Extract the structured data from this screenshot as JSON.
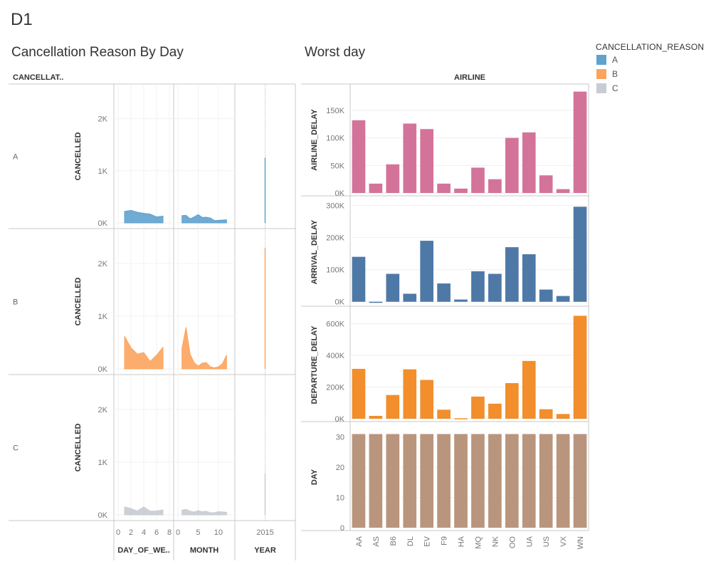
{
  "dashboard": {
    "title": "D1"
  },
  "sheets": {
    "left_title": "Cancellation Reason By Day",
    "right_title": "Worst day"
  },
  "legend": {
    "title": "CANCELLATION_REASON",
    "items": [
      {
        "label": "A",
        "color": "#5fa2ce"
      },
      {
        "label": "B",
        "color": "#fca45d"
      },
      {
        "label": "C",
        "color": "#c8ccd3"
      }
    ]
  },
  "chart_data": [
    {
      "type": "area",
      "row_header": "CANCELLAT..",
      "ylabel": "CANCELLED",
      "ylim": [
        0,
        2500
      ],
      "yticks": [
        0,
        1000,
        2000
      ],
      "ytick_labels": [
        "0K",
        "1K",
        "2K"
      ],
      "rows": [
        {
          "name": "A",
          "color": "#5fa2ce",
          "day_of_week": [
            [
              1,
              220
            ],
            [
              2,
              240
            ],
            [
              3,
              205
            ],
            [
              4,
              185
            ],
            [
              5,
              170
            ],
            [
              6,
              115
            ],
            [
              7,
              130
            ]
          ],
          "month": [
            [
              1,
              140
            ],
            [
              2,
              145
            ],
            [
              3,
              80
            ],
            [
              4,
              115
            ],
            [
              5,
              160
            ],
            [
              6,
              105
            ],
            [
              7,
              110
            ],
            [
              8,
              95
            ],
            [
              9,
              45
            ],
            [
              10,
              50
            ],
            [
              11,
              55
            ],
            [
              12,
              60
            ]
          ],
          "year": [
            [
              2015,
              1250
            ]
          ]
        },
        {
          "name": "B",
          "color": "#fca45d",
          "day_of_week": [
            [
              1,
              620
            ],
            [
              2,
              400
            ],
            [
              3,
              280
            ],
            [
              4,
              310
            ],
            [
              5,
              140
            ],
            [
              6,
              260
            ],
            [
              7,
              410
            ]
          ],
          "month": [
            [
              1,
              390
            ],
            [
              2,
              790
            ],
            [
              3,
              280
            ],
            [
              4,
              120
            ],
            [
              5,
              50
            ],
            [
              6,
              110
            ],
            [
              7,
              120
            ],
            [
              8,
              40
            ],
            [
              9,
              20
            ],
            [
              10,
              40
            ],
            [
              11,
              100
            ],
            [
              12,
              260
            ]
          ],
          "year": [
            [
              2015,
              2300
            ]
          ]
        },
        {
          "name": "C",
          "color": "#c8ccd3",
          "day_of_week": [
            [
              1,
              150
            ],
            [
              2,
              120
            ],
            [
              3,
              75
            ],
            [
              4,
              150
            ],
            [
              5,
              70
            ],
            [
              6,
              75
            ],
            [
              7,
              95
            ]
          ],
          "month": [
            [
              1,
              90
            ],
            [
              2,
              105
            ],
            [
              3,
              70
            ],
            [
              4,
              55
            ],
            [
              5,
              80
            ],
            [
              6,
              60
            ],
            [
              7,
              70
            ],
            [
              8,
              40
            ],
            [
              9,
              40
            ],
            [
              10,
              60
            ],
            [
              11,
              55
            ],
            [
              12,
              50
            ]
          ],
          "year": [
            [
              2015,
              780
            ]
          ]
        }
      ],
      "columns": [
        {
          "key": "day_of_week",
          "label": "DAY_OF_WE..",
          "xlim": [
            0,
            8
          ],
          "ticks": [
            0,
            2,
            4,
            6,
            8
          ]
        },
        {
          "key": "month",
          "label": "MONTH",
          "xlim": [
            0,
            13
          ],
          "ticks": [
            0,
            5,
            10
          ]
        },
        {
          "key": "year",
          "label": "YEAR",
          "xlim": [
            2014,
            2016
          ],
          "ticks": [
            2015
          ]
        }
      ]
    },
    {
      "type": "bar",
      "xlabel": "AIRLINE",
      "categories": [
        "AA",
        "AS",
        "B6",
        "DL",
        "EV",
        "F9",
        "HA",
        "MQ",
        "NK",
        "OO",
        "UA",
        "US",
        "VX",
        "WN"
      ],
      "series": [
        {
          "name": "AIRLINE_DELAY",
          "color": "#d4739a",
          "ylim": [
            0,
            190000
          ],
          "yticks": [
            0,
            50000,
            100000,
            150000
          ],
          "ytick_labels": [
            "0K",
            "50K",
            "100K",
            "150K"
          ],
          "values": [
            132000,
            17000,
            52000,
            126000,
            116000,
            17000,
            8000,
            46000,
            25000,
            100000,
            110000,
            32000,
            7000,
            184000
          ]
        },
        {
          "name": "ARRIVAL_DELAY",
          "color": "#4e79a7",
          "ylim": [
            -5000,
            310000
          ],
          "yticks": [
            0,
            100000,
            200000,
            300000
          ],
          "ytick_labels": [
            "0K",
            "100K",
            "200K",
            "300K"
          ],
          "values": [
            140000,
            -3000,
            87000,
            25000,
            190000,
            57000,
            7000,
            95000,
            87000,
            170000,
            148000,
            38000,
            18000,
            296000
          ]
        },
        {
          "name": "DEPARTURE_DELAY",
          "color": "#f28e2b",
          "ylim": [
            0,
            670000
          ],
          "yticks": [
            0,
            200000,
            400000,
            600000
          ],
          "ytick_labels": [
            "0K",
            "200K",
            "400K",
            "600K"
          ],
          "values": [
            315000,
            18000,
            150000,
            312000,
            245000,
            57000,
            3000,
            140000,
            95000,
            225000,
            365000,
            60000,
            30000,
            650000
          ]
        },
        {
          "name": "DAY",
          "color": "#b9957d",
          "ylim": [
            0,
            33
          ],
          "yticks": [
            0,
            10,
            20,
            30
          ],
          "ytick_labels": [
            "0",
            "10",
            "20",
            "30"
          ],
          "values": [
            31,
            31,
            31,
            31,
            31,
            31,
            31,
            31,
            31,
            31,
            31,
            31,
            31,
            31
          ]
        }
      ]
    }
  ]
}
